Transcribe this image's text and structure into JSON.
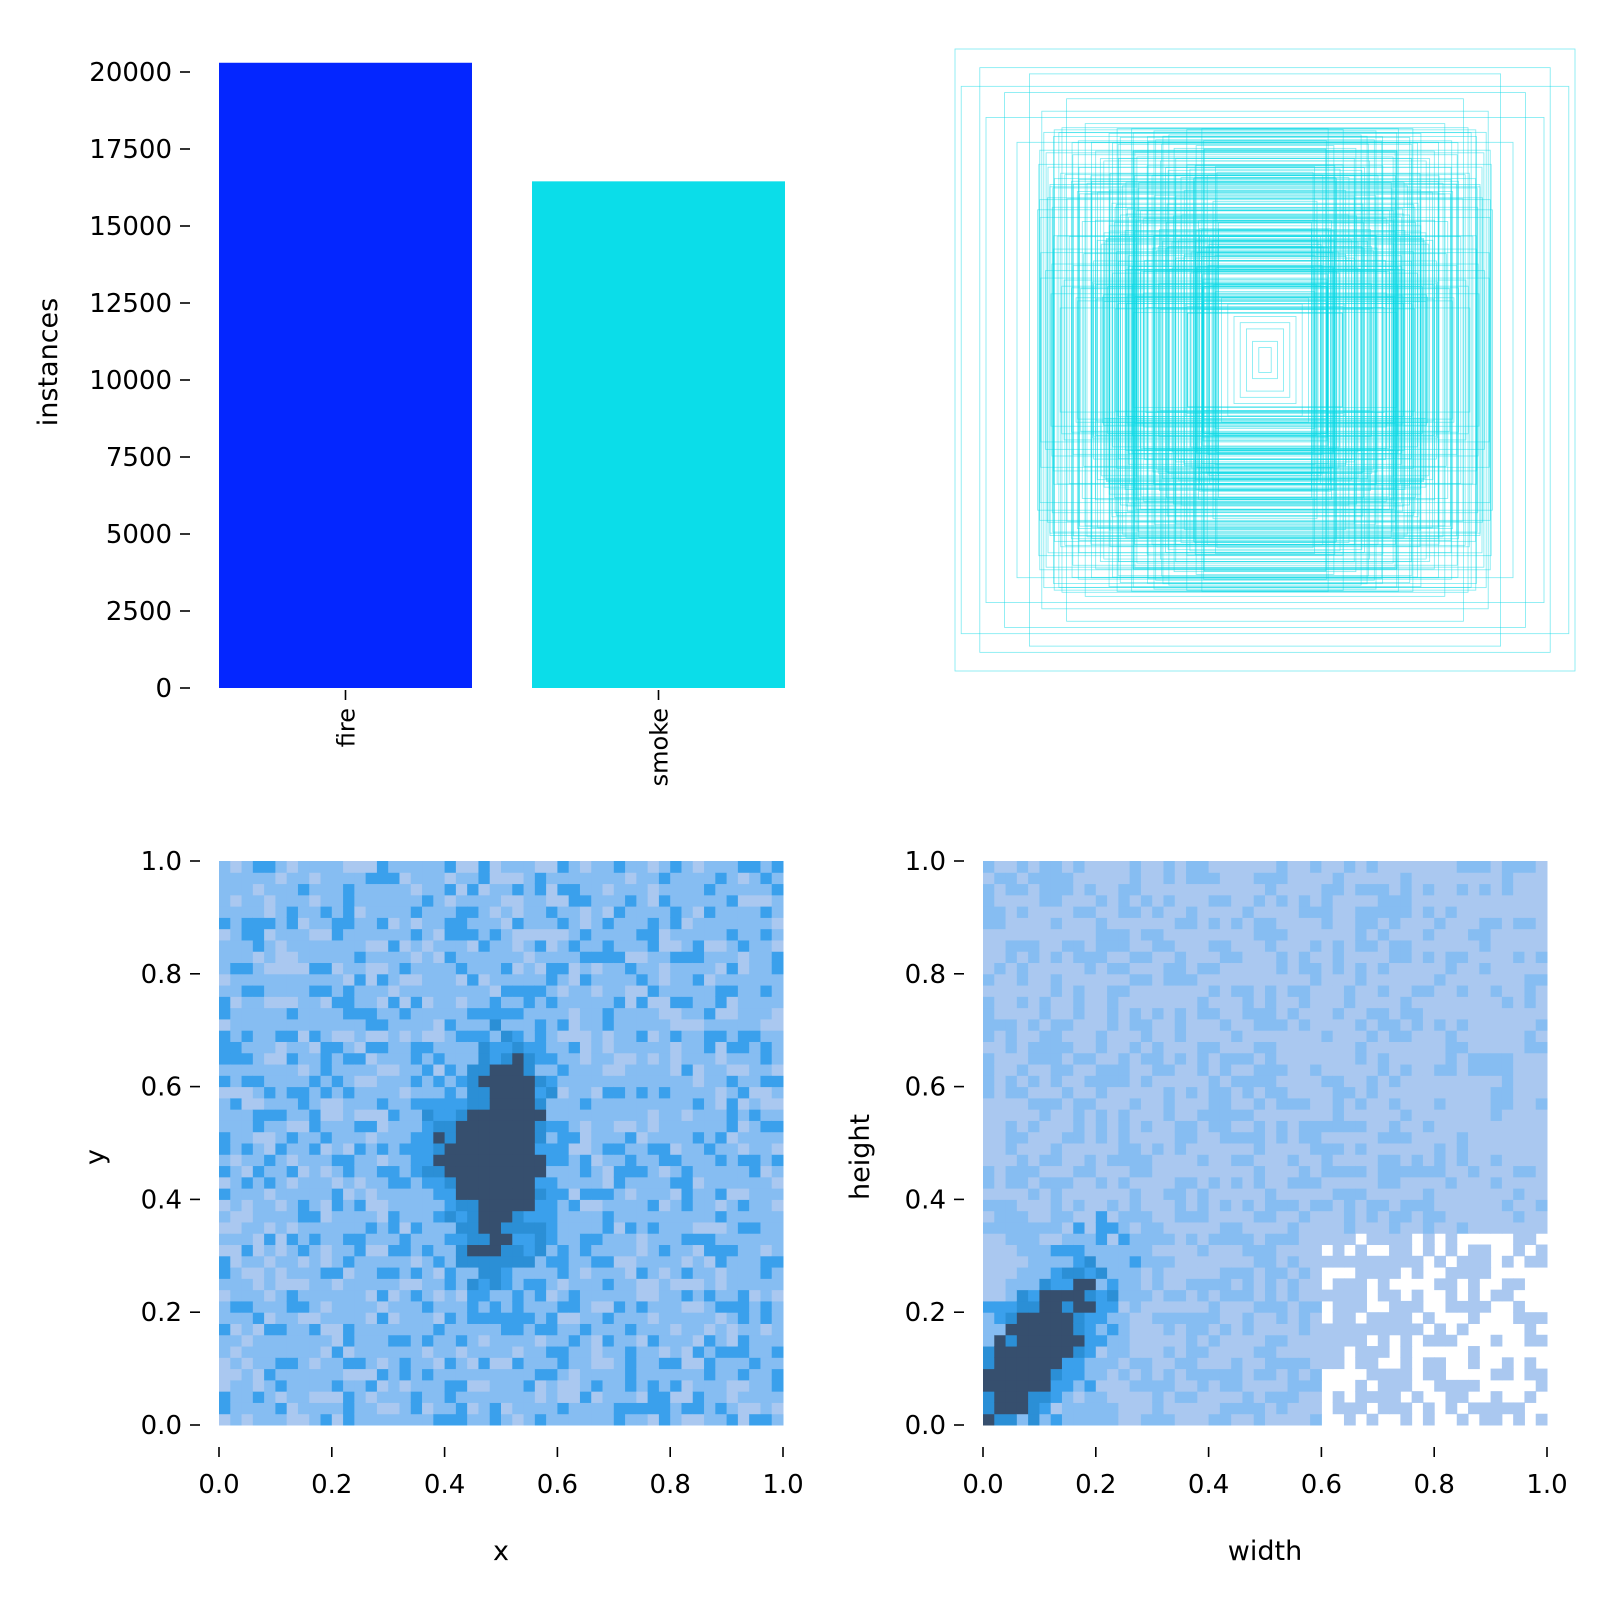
{
  "chart_data": [
    {
      "type": "bar",
      "categories": [
        "fire",
        "smoke"
      ],
      "values": [
        20300,
        16450
      ],
      "colors": [
        "#0426ff",
        "#0bdde9"
      ],
      "xlabel": "",
      "ylabel": "instances",
      "ylim": [
        0,
        20000
      ],
      "yticks": [
        "0",
        "2500",
        "5000",
        "7500",
        "10000",
        "12500",
        "15000",
        "17500",
        "20000"
      ],
      "grid": false
    },
    {
      "type": "scatter",
      "description_of_marks": "overlaid label bounding boxes centered on one point",
      "box_color": "#0ad8e6",
      "boxes_wh": [
        [
          1.0,
          1.0
        ],
        [
          0.98,
          0.88
        ],
        [
          0.92,
          0.94
        ],
        [
          0.9,
          0.78
        ],
        [
          0.84,
          0.86
        ],
        [
          0.8,
          0.7
        ],
        [
          0.76,
          0.92
        ],
        [
          0.72,
          0.8
        ],
        [
          0.7,
          0.62
        ],
        [
          0.68,
          0.74
        ],
        [
          0.64,
          0.84
        ],
        [
          0.62,
          0.66
        ],
        [
          0.6,
          0.58
        ],
        [
          0.58,
          0.76
        ],
        [
          0.56,
          0.7
        ],
        [
          0.54,
          0.54
        ],
        [
          0.52,
          0.64
        ],
        [
          0.5,
          0.6
        ],
        [
          0.48,
          0.5
        ],
        [
          0.46,
          0.56
        ],
        [
          0.44,
          0.46
        ],
        [
          0.42,
          0.52
        ],
        [
          0.4,
          0.44
        ],
        [
          0.38,
          0.48
        ],
        [
          0.36,
          0.4
        ],
        [
          0.34,
          0.42
        ],
        [
          0.32,
          0.36
        ],
        [
          0.3,
          0.38
        ],
        [
          0.28,
          0.32
        ],
        [
          0.26,
          0.34
        ],
        [
          0.24,
          0.28
        ],
        [
          0.22,
          0.3
        ],
        [
          0.2,
          0.26
        ],
        [
          0.18,
          0.24
        ],
        [
          0.16,
          0.22
        ],
        [
          0.14,
          0.2
        ],
        [
          0.12,
          0.18
        ],
        [
          0.1,
          0.14
        ],
        [
          0.08,
          0.12
        ],
        [
          0.06,
          0.1
        ],
        [
          0.04,
          0.06
        ],
        [
          0.02,
          0.04
        ]
      ]
    },
    {
      "type": "heatmap",
      "xlabel": "x",
      "ylabel": "y",
      "xlim": [
        0,
        1
      ],
      "ylim": [
        0,
        1
      ],
      "xticks": [
        "0.0",
        "0.2",
        "0.4",
        "0.6",
        "0.8",
        "1.0"
      ],
      "yticks": [
        "0.0",
        "0.2",
        "0.4",
        "0.6",
        "0.8",
        "1.0"
      ],
      "bins": 50,
      "peak": {
        "x": 0.52,
        "y": 0.56
      },
      "secondary_peaks": [
        {
          "x": 0.49,
          "y": 0.33
        },
        {
          "x": 0.42,
          "y": 0.5
        },
        {
          "x": 0.5,
          "y": 0.45
        }
      ],
      "colors": [
        "#aac8f0",
        "#86bdf2",
        "#3aa0ec",
        "#2b8fd6",
        "#364f6e"
      ]
    },
    {
      "type": "heatmap",
      "xlabel": "width",
      "ylabel": "height",
      "xlim": [
        0,
        1
      ],
      "ylim": [
        0,
        1
      ],
      "xticks": [
        "0.0",
        "0.2",
        "0.4",
        "0.6",
        "0.8",
        "1.0"
      ],
      "yticks": [
        "0.0",
        "0.2",
        "0.4",
        "0.6",
        "0.8",
        "1.0"
      ],
      "bins": 50,
      "peak": {
        "x": 0.08,
        "y": 0.12
      },
      "colors": [
        "#aac8f0",
        "#86bdf2",
        "#3aa0ec",
        "#2b8fd6",
        "#364f6e"
      ]
    }
  ]
}
